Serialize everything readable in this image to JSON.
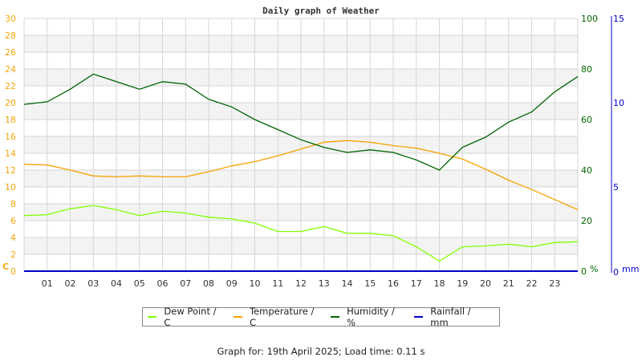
{
  "chart_data": {
    "type": "line",
    "title": "Daily graph of Weather",
    "xlabel": "",
    "x_ticks": [
      "01",
      "02",
      "03",
      "04",
      "05",
      "06",
      "07",
      "08",
      "09",
      "10",
      "11",
      "12",
      "13",
      "14",
      "15",
      "16",
      "17",
      "18",
      "19",
      "20",
      "21",
      "22",
      "23"
    ],
    "x_hours": [
      0,
      1,
      2,
      3,
      4,
      5,
      6,
      7,
      8,
      9,
      10,
      11,
      12,
      13,
      14,
      15,
      16,
      17,
      18,
      19,
      20,
      21,
      22,
      23,
      24
    ],
    "axes": {
      "left": {
        "label": "C",
        "range": [
          0,
          30
        ],
        "ticks": [
          "0",
          "2",
          "4",
          "6",
          "8",
          "10",
          "12",
          "14",
          "16",
          "18",
          "20",
          "22",
          "24",
          "26",
          "28",
          "30"
        ],
        "color": "#f5a70f"
      },
      "right": {
        "label": "%",
        "range": [
          0,
          100
        ],
        "ticks": [
          "0",
          "20",
          "40",
          "60",
          "80",
          "100"
        ],
        "color": "#006400"
      },
      "rain": {
        "label": "mm",
        "range": [
          0,
          15
        ],
        "ticks": [
          "0",
          "5",
          "10",
          "15"
        ],
        "color": "#0000cc"
      }
    },
    "grid": true,
    "legend_position": "bottom",
    "series": [
      {
        "name": "Dew Point / C",
        "axis": "left",
        "color": "#80ff00",
        "values": [
          6.6,
          6.7,
          7.4,
          7.8,
          7.3,
          6.6,
          7.1,
          6.9,
          6.4,
          6.2,
          5.7,
          4.7,
          4.7,
          5.3,
          4.5,
          4.5,
          4.2,
          2.9,
          1.2,
          2.9,
          3.0,
          3.2,
          2.9,
          3.4,
          3.5
        ]
      },
      {
        "name": "Temperature / C",
        "axis": "left",
        "color": "#f5a300",
        "values": [
          12.7,
          12.6,
          12.0,
          11.3,
          11.2,
          11.3,
          11.2,
          11.2,
          11.8,
          12.5,
          13.0,
          13.7,
          14.5,
          15.3,
          15.5,
          15.3,
          14.9,
          14.6,
          14.0,
          13.3,
          12.1,
          10.8,
          9.7,
          8.5,
          7.3
        ]
      },
      {
        "name": "Humidity / %",
        "axis": "right",
        "color": "#006400",
        "values": [
          66,
          67,
          72,
          78,
          75,
          72,
          75,
          74,
          68,
          65,
          60,
          56,
          52,
          49,
          47,
          48,
          47,
          44,
          40,
          49,
          53,
          59,
          63,
          71,
          77
        ]
      },
      {
        "name": "Rainfall / mm",
        "axis": "rain",
        "color": "#0000cc",
        "values": [
          0,
          0,
          0,
          0,
          0,
          0,
          0,
          0,
          0,
          0,
          0,
          0,
          0,
          0,
          0,
          0,
          0,
          0,
          0,
          0,
          0,
          0,
          0,
          0,
          0
        ]
      }
    ]
  },
  "legend": {
    "items": [
      {
        "label": "Dew Point / C",
        "color": "#80ff00"
      },
      {
        "label": "Temperature / C",
        "color": "#f5a300"
      },
      {
        "label": "Humidity / %",
        "color": "#006400"
      },
      {
        "label": "Rainfall / mm",
        "color": "#0000cc"
      }
    ]
  },
  "footer": {
    "text": "Graph for: 19th April 2025; Load time: 0.11 s"
  }
}
